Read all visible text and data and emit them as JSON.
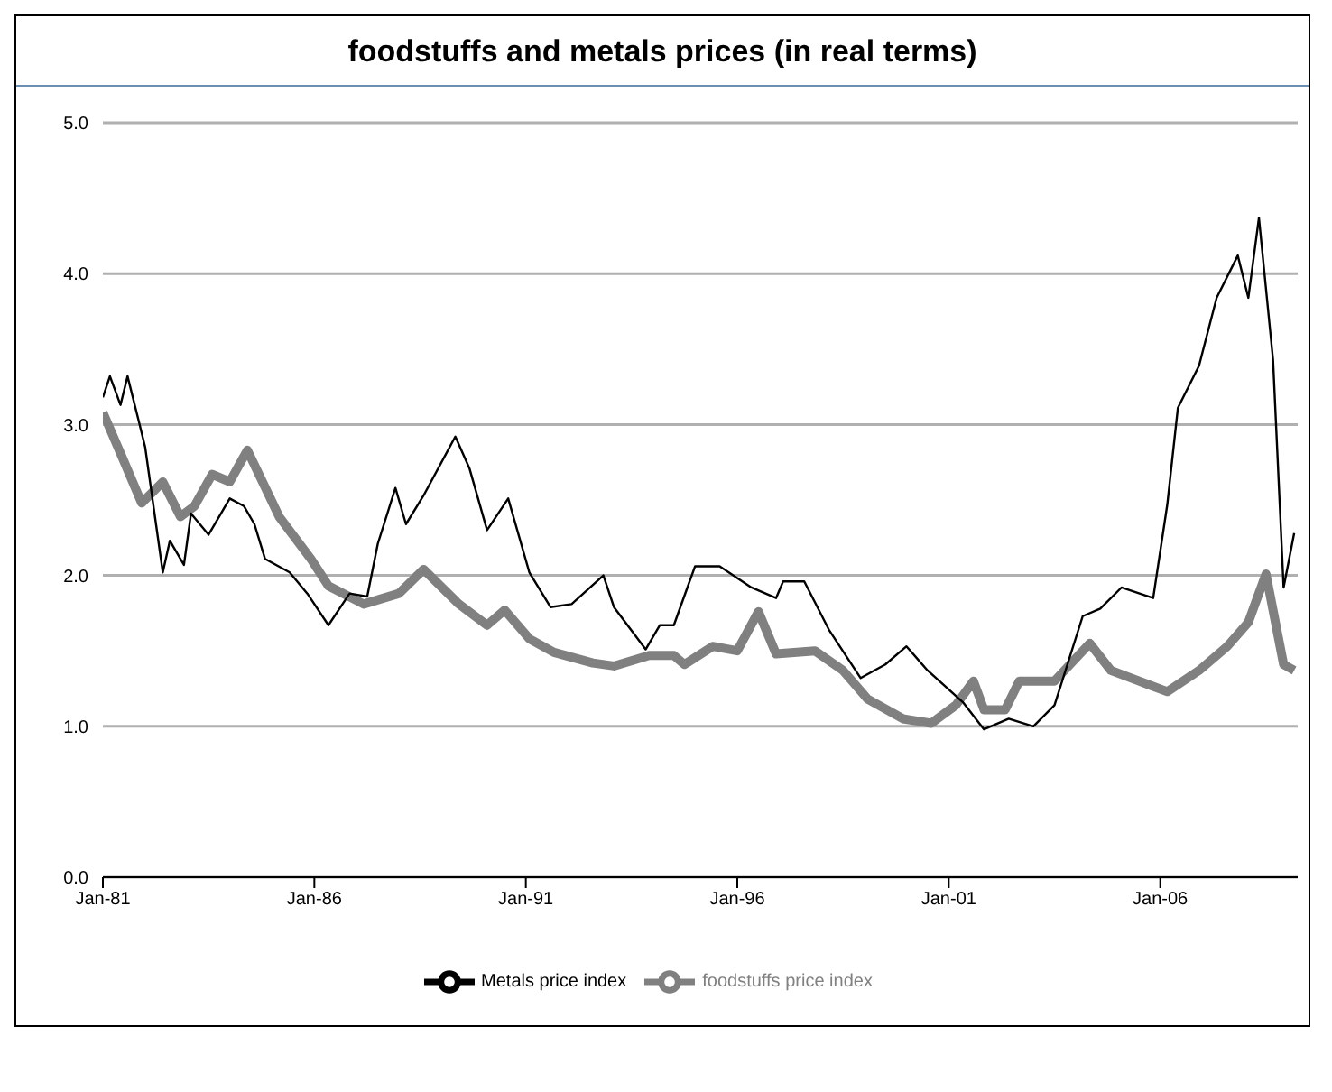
{
  "chart_data": {
    "type": "line",
    "title": "foodstuffs and metals prices (in real terms)",
    "xlim": [
      "1981-01",
      "2009-04"
    ],
    "xticks": [
      {
        "value": "1981-01",
        "label": "Jan-81"
      },
      {
        "value": "1986-01",
        "label": "Jan-86"
      },
      {
        "value": "1991-01",
        "label": "Jan-91"
      },
      {
        "value": "1996-01",
        "label": "Jan-96"
      },
      {
        "value": "2001-01",
        "label": "Jan-01"
      },
      {
        "value": "2006-01",
        "label": "Jan-06"
      }
    ],
    "ylim": [
      0,
      5
    ],
    "yticks": [
      {
        "value": 0,
        "label": "0.0"
      },
      {
        "value": 1,
        "label": "1.0"
      },
      {
        "value": 2,
        "label": "2.0"
      },
      {
        "value": 3,
        "label": "3.0"
      },
      {
        "value": 4,
        "label": "4.0"
      },
      {
        "value": 5,
        "label": "5.0"
      }
    ],
    "grid": "y",
    "legend": "bottom",
    "marker": "none",
    "series": [
      {
        "name": "foodstuffs price index",
        "color": "#808080",
        "x": [
          "1981-01",
          "1981-06",
          "1981-12",
          "1982-06",
          "1982-11",
          "1983-03",
          "1983-08",
          "1984-01",
          "1984-06",
          "1985-03",
          "1985-12",
          "1986-05",
          "1987-03",
          "1988-01",
          "1988-08",
          "1989-06",
          "1990-02",
          "1990-07",
          "1991-02",
          "1991-09",
          "1992-08",
          "1993-02",
          "1993-12",
          "1994-07",
          "1994-10",
          "1995-06",
          "1996-01",
          "1996-07",
          "1996-12",
          "1997-11",
          "1998-07",
          "1999-02",
          "1999-12",
          "2000-08",
          "2001-03",
          "2001-08",
          "2001-11",
          "2002-05",
          "2002-09",
          "2003-07",
          "2004-05",
          "2004-11",
          "2005-07",
          "2006-03",
          "2006-12",
          "2007-08",
          "2008-02",
          "2008-07",
          "2008-12",
          "2009-03"
        ],
        "values": [
          3.08,
          2.81,
          2.48,
          2.62,
          2.39,
          2.46,
          2.67,
          2.62,
          2.83,
          2.39,
          2.11,
          1.93,
          1.81,
          1.88,
          2.04,
          1.81,
          1.67,
          1.77,
          1.58,
          1.49,
          1.42,
          1.4,
          1.47,
          1.47,
          1.41,
          1.53,
          1.5,
          1.76,
          1.48,
          1.5,
          1.37,
          1.18,
          1.05,
          1.02,
          1.14,
          1.3,
          1.11,
          1.11,
          1.3,
          1.3,
          1.55,
          1.37,
          1.3,
          1.23,
          1.37,
          1.53,
          1.69,
          2.01,
          1.41,
          1.37
        ]
      },
      {
        "name": "Metals price index",
        "color": "#000000",
        "x": [
          "1981-01",
          "1981-03",
          "1981-06",
          "1981-08",
          "1981-11",
          "1982-01",
          "1982-06",
          "1982-08",
          "1982-12",
          "1983-02",
          "1983-07",
          "1984-01",
          "1984-05",
          "1984-08",
          "1984-11",
          "1985-06",
          "1985-11",
          "1986-05",
          "1986-11",
          "1987-04",
          "1987-07",
          "1987-12",
          "1988-03",
          "1988-08",
          "1989-05",
          "1989-09",
          "1990-02",
          "1990-08",
          "1991-02",
          "1991-08",
          "1992-02",
          "1992-11",
          "1993-02",
          "1993-11",
          "1994-03",
          "1994-07",
          "1995-01",
          "1995-08",
          "1996-05",
          "1996-12",
          "1997-02",
          "1997-08",
          "1998-03",
          "1998-12",
          "1999-07",
          "2000-01",
          "2000-07",
          "2001-05",
          "2001-11",
          "2002-06",
          "2003-01",
          "2003-07",
          "2004-03",
          "2004-08",
          "2005-02",
          "2005-11",
          "2006-03",
          "2006-06",
          "2006-12",
          "2007-05",
          "2007-11",
          "2008-02",
          "2008-05",
          "2008-09",
          "2008-12",
          "2009-03"
        ],
        "values": [
          3.18,
          3.32,
          3.13,
          3.32,
          3.04,
          2.85,
          2.02,
          2.23,
          2.07,
          2.41,
          2.27,
          2.51,
          2.46,
          2.34,
          2.11,
          2.02,
          1.88,
          1.67,
          1.88,
          1.86,
          2.21,
          2.58,
          2.34,
          2.53,
          2.92,
          2.71,
          2.3,
          2.51,
          2.02,
          1.79,
          1.81,
          2.0,
          1.79,
          1.51,
          1.67,
          1.67,
          2.06,
          2.06,
          1.92,
          1.85,
          1.96,
          1.96,
          1.64,
          1.32,
          1.41,
          1.53,
          1.37,
          1.16,
          0.98,
          1.05,
          1.0,
          1.14,
          1.73,
          1.78,
          1.92,
          1.85,
          2.47,
          3.11,
          3.39,
          3.84,
          4.12,
          3.84,
          4.37,
          3.43,
          1.92,
          2.28
        ]
      }
    ]
  }
}
